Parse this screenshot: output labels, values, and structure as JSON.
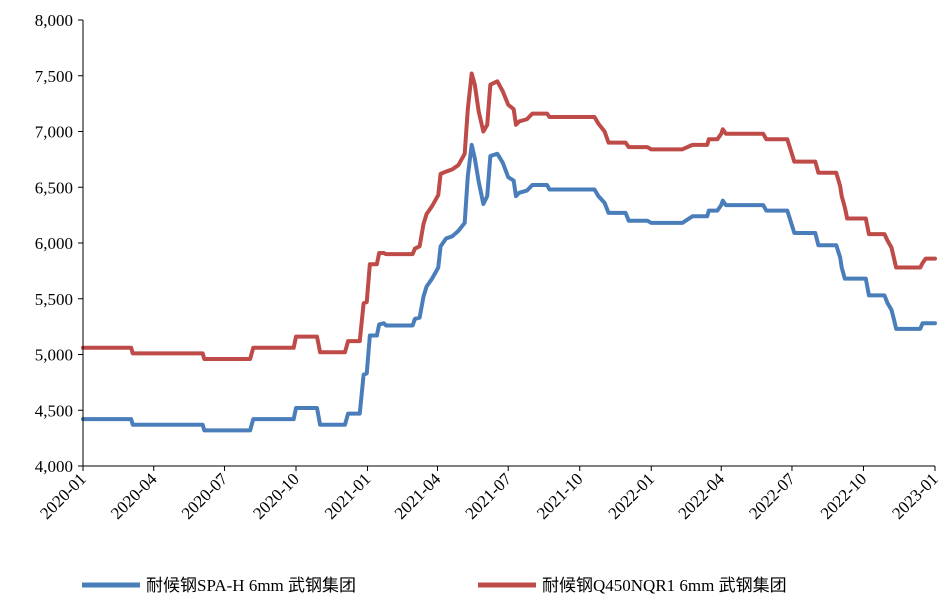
{
  "chart_data": {
    "type": "line",
    "title": "",
    "xlabel": "",
    "ylabel": "",
    "ylim": [
      4000,
      8000
    ],
    "yticks": [
      4000,
      4500,
      5000,
      5500,
      6000,
      6500,
      7000,
      7500,
      8000
    ],
    "ytick_labels": [
      "4,000",
      "4,500",
      "5,000",
      "5,500",
      "6,000",
      "6,500",
      "7,000",
      "7,500",
      "8,000"
    ],
    "xlim": [
      "2020-01",
      "2023-01"
    ],
    "xticks": [
      "2020-01",
      "2020-04",
      "2020-07",
      "2020-10",
      "2021-01",
      "2021-04",
      "2021-07",
      "2021-10",
      "2022-01",
      "2022-04",
      "2022-07",
      "2022-10",
      "2023-01"
    ],
    "grid": false,
    "legend_position": "bottom",
    "series": [
      {
        "name": "耐候钢SPA-H 6mm 武钢集团",
        "color": "#4a7ebb",
        "points": [
          [
            "2020-01-01",
            4420
          ],
          [
            "2020-03-03",
            4420
          ],
          [
            "2020-03-05",
            4370
          ],
          [
            "2020-06-03",
            4370
          ],
          [
            "2020-06-05",
            4320
          ],
          [
            "2020-08-03",
            4320
          ],
          [
            "2020-08-07",
            4420
          ],
          [
            "2020-09-28",
            4420
          ],
          [
            "2020-10-01",
            4520
          ],
          [
            "2020-10-28",
            4520
          ],
          [
            "2020-11-01",
            4370
          ],
          [
            "2020-12-03",
            4370
          ],
          [
            "2020-12-07",
            4470
          ],
          [
            "2020-12-22",
            4470
          ],
          [
            "2020-12-27",
            4820
          ],
          [
            "2020-12-31",
            4830
          ],
          [
            "2021-01-04",
            5170
          ],
          [
            "2021-01-13",
            5170
          ],
          [
            "2021-01-16",
            5270
          ],
          [
            "2021-01-22",
            5280
          ],
          [
            "2021-01-25",
            5260
          ],
          [
            "2021-02-28",
            5260
          ],
          [
            "2021-03-03",
            5320
          ],
          [
            "2021-03-09",
            5330
          ],
          [
            "2021-03-14",
            5520
          ],
          [
            "2021-03-18",
            5610
          ],
          [
            "2021-03-25",
            5680
          ],
          [
            "2021-04-02",
            5780
          ],
          [
            "2021-04-05",
            5970
          ],
          [
            "2021-04-12",
            6040
          ],
          [
            "2021-04-20",
            6060
          ],
          [
            "2021-04-28",
            6110
          ],
          [
            "2021-05-06",
            6180
          ],
          [
            "2021-05-10",
            6600
          ],
          [
            "2021-05-15",
            6880
          ],
          [
            "2021-05-19",
            6760
          ],
          [
            "2021-05-24",
            6550
          ],
          [
            "2021-05-30",
            6350
          ],
          [
            "2021-06-04",
            6420
          ],
          [
            "2021-06-08",
            6780
          ],
          [
            "2021-06-17",
            6800
          ],
          [
            "2021-06-24",
            6720
          ],
          [
            "2021-07-01",
            6590
          ],
          [
            "2021-07-08",
            6560
          ],
          [
            "2021-07-11",
            6420
          ],
          [
            "2021-07-15",
            6450
          ],
          [
            "2021-07-25",
            6470
          ],
          [
            "2021-08-01",
            6520
          ],
          [
            "2021-08-20",
            6520
          ],
          [
            "2021-08-23",
            6480
          ],
          [
            "2021-10-20",
            6480
          ],
          [
            "2021-10-25",
            6420
          ],
          [
            "2021-11-02",
            6360
          ],
          [
            "2021-11-07",
            6270
          ],
          [
            "2021-11-29",
            6270
          ],
          [
            "2021-12-03",
            6200
          ],
          [
            "2021-12-27",
            6200
          ],
          [
            "2022-01-01",
            6180
          ],
          [
            "2022-02-10",
            6180
          ],
          [
            "2022-02-23",
            6240
          ],
          [
            "2022-03-14",
            6240
          ],
          [
            "2022-03-16",
            6290
          ],
          [
            "2022-03-27",
            6290
          ],
          [
            "2022-04-01",
            6340
          ],
          [
            "2022-04-03",
            6380
          ],
          [
            "2022-04-07",
            6340
          ],
          [
            "2022-05-25",
            6340
          ],
          [
            "2022-05-29",
            6290
          ],
          [
            "2022-06-25",
            6290
          ],
          [
            "2022-06-30",
            6180
          ],
          [
            "2022-07-04",
            6090
          ],
          [
            "2022-07-31",
            6090
          ],
          [
            "2022-08-04",
            5980
          ],
          [
            "2022-08-27",
            5980
          ],
          [
            "2022-09-01",
            5870
          ],
          [
            "2022-09-03",
            5780
          ],
          [
            "2022-09-07",
            5680
          ],
          [
            "2022-10-04",
            5680
          ],
          [
            "2022-10-08",
            5530
          ],
          [
            "2022-10-28",
            5530
          ],
          [
            "2022-11-01",
            5460
          ],
          [
            "2022-11-06",
            5400
          ],
          [
            "2022-11-09",
            5320
          ],
          [
            "2022-11-12",
            5230
          ],
          [
            "2022-12-13",
            5230
          ],
          [
            "2022-12-16",
            5280
          ],
          [
            "2023-01-01",
            5280
          ]
        ]
      },
      {
        "name": "耐候钢Q450NQR1 6mm 武钢集团",
        "color": "#be4b48",
        "points": [
          [
            "2020-01-01",
            5060
          ],
          [
            "2020-03-03",
            5060
          ],
          [
            "2020-03-05",
            5010
          ],
          [
            "2020-06-03",
            5010
          ],
          [
            "2020-06-05",
            4960
          ],
          [
            "2020-08-03",
            4960
          ],
          [
            "2020-08-07",
            5060
          ],
          [
            "2020-09-28",
            5060
          ],
          [
            "2020-10-01",
            5160
          ],
          [
            "2020-10-28",
            5160
          ],
          [
            "2020-11-01",
            5020
          ],
          [
            "2020-12-03",
            5020
          ],
          [
            "2020-12-07",
            5120
          ],
          [
            "2020-12-22",
            5120
          ],
          [
            "2020-12-27",
            5460
          ],
          [
            "2020-12-31",
            5470
          ],
          [
            "2021-01-04",
            5810
          ],
          [
            "2021-01-13",
            5810
          ],
          [
            "2021-01-16",
            5910
          ],
          [
            "2021-01-22",
            5910
          ],
          [
            "2021-01-25",
            5900
          ],
          [
            "2021-02-28",
            5900
          ],
          [
            "2021-03-03",
            5950
          ],
          [
            "2021-03-09",
            5970
          ],
          [
            "2021-03-14",
            6170
          ],
          [
            "2021-03-18",
            6260
          ],
          [
            "2021-03-25",
            6330
          ],
          [
            "2021-04-02",
            6430
          ],
          [
            "2021-04-05",
            6620
          ],
          [
            "2021-04-12",
            6640
          ],
          [
            "2021-04-20",
            6660
          ],
          [
            "2021-04-28",
            6700
          ],
          [
            "2021-05-06",
            6800
          ],
          [
            "2021-05-10",
            7200
          ],
          [
            "2021-05-15",
            7520
          ],
          [
            "2021-05-19",
            7420
          ],
          [
            "2021-05-24",
            7180
          ],
          [
            "2021-05-30",
            7000
          ],
          [
            "2021-06-04",
            7060
          ],
          [
            "2021-06-08",
            7420
          ],
          [
            "2021-06-17",
            7450
          ],
          [
            "2021-06-24",
            7360
          ],
          [
            "2021-07-01",
            7240
          ],
          [
            "2021-07-08",
            7200
          ],
          [
            "2021-07-11",
            7060
          ],
          [
            "2021-07-15",
            7090
          ],
          [
            "2021-07-25",
            7110
          ],
          [
            "2021-08-01",
            7160
          ],
          [
            "2021-08-20",
            7160
          ],
          [
            "2021-08-23",
            7130
          ],
          [
            "2021-10-20",
            7130
          ],
          [
            "2021-10-25",
            7070
          ],
          [
            "2021-11-02",
            7000
          ],
          [
            "2021-11-07",
            6900
          ],
          [
            "2021-11-29",
            6900
          ],
          [
            "2021-12-03",
            6860
          ],
          [
            "2021-12-27",
            6860
          ],
          [
            "2022-01-01",
            6840
          ],
          [
            "2022-02-10",
            6840
          ],
          [
            "2022-02-23",
            6880
          ],
          [
            "2022-03-14",
            6880
          ],
          [
            "2022-03-16",
            6930
          ],
          [
            "2022-03-27",
            6930
          ],
          [
            "2022-04-01",
            6980
          ],
          [
            "2022-04-03",
            7020
          ],
          [
            "2022-04-07",
            6980
          ],
          [
            "2022-05-25",
            6980
          ],
          [
            "2022-05-29",
            6930
          ],
          [
            "2022-06-25",
            6930
          ],
          [
            "2022-06-30",
            6820
          ],
          [
            "2022-07-04",
            6730
          ],
          [
            "2022-07-31",
            6730
          ],
          [
            "2022-08-04",
            6630
          ],
          [
            "2022-08-27",
            6630
          ],
          [
            "2022-09-01",
            6510
          ],
          [
            "2022-09-03",
            6420
          ],
          [
            "2022-09-07",
            6320
          ],
          [
            "2022-09-10",
            6220
          ],
          [
            "2022-10-04",
            6220
          ],
          [
            "2022-10-08",
            6080
          ],
          [
            "2022-10-28",
            6080
          ],
          [
            "2022-11-01",
            6020
          ],
          [
            "2022-11-06",
            5960
          ],
          [
            "2022-11-09",
            5870
          ],
          [
            "2022-11-12",
            5780
          ],
          [
            "2022-12-13",
            5780
          ],
          [
            "2022-12-16",
            5820
          ],
          [
            "2022-12-20",
            5860
          ],
          [
            "2023-01-01",
            5860
          ]
        ]
      }
    ]
  }
}
